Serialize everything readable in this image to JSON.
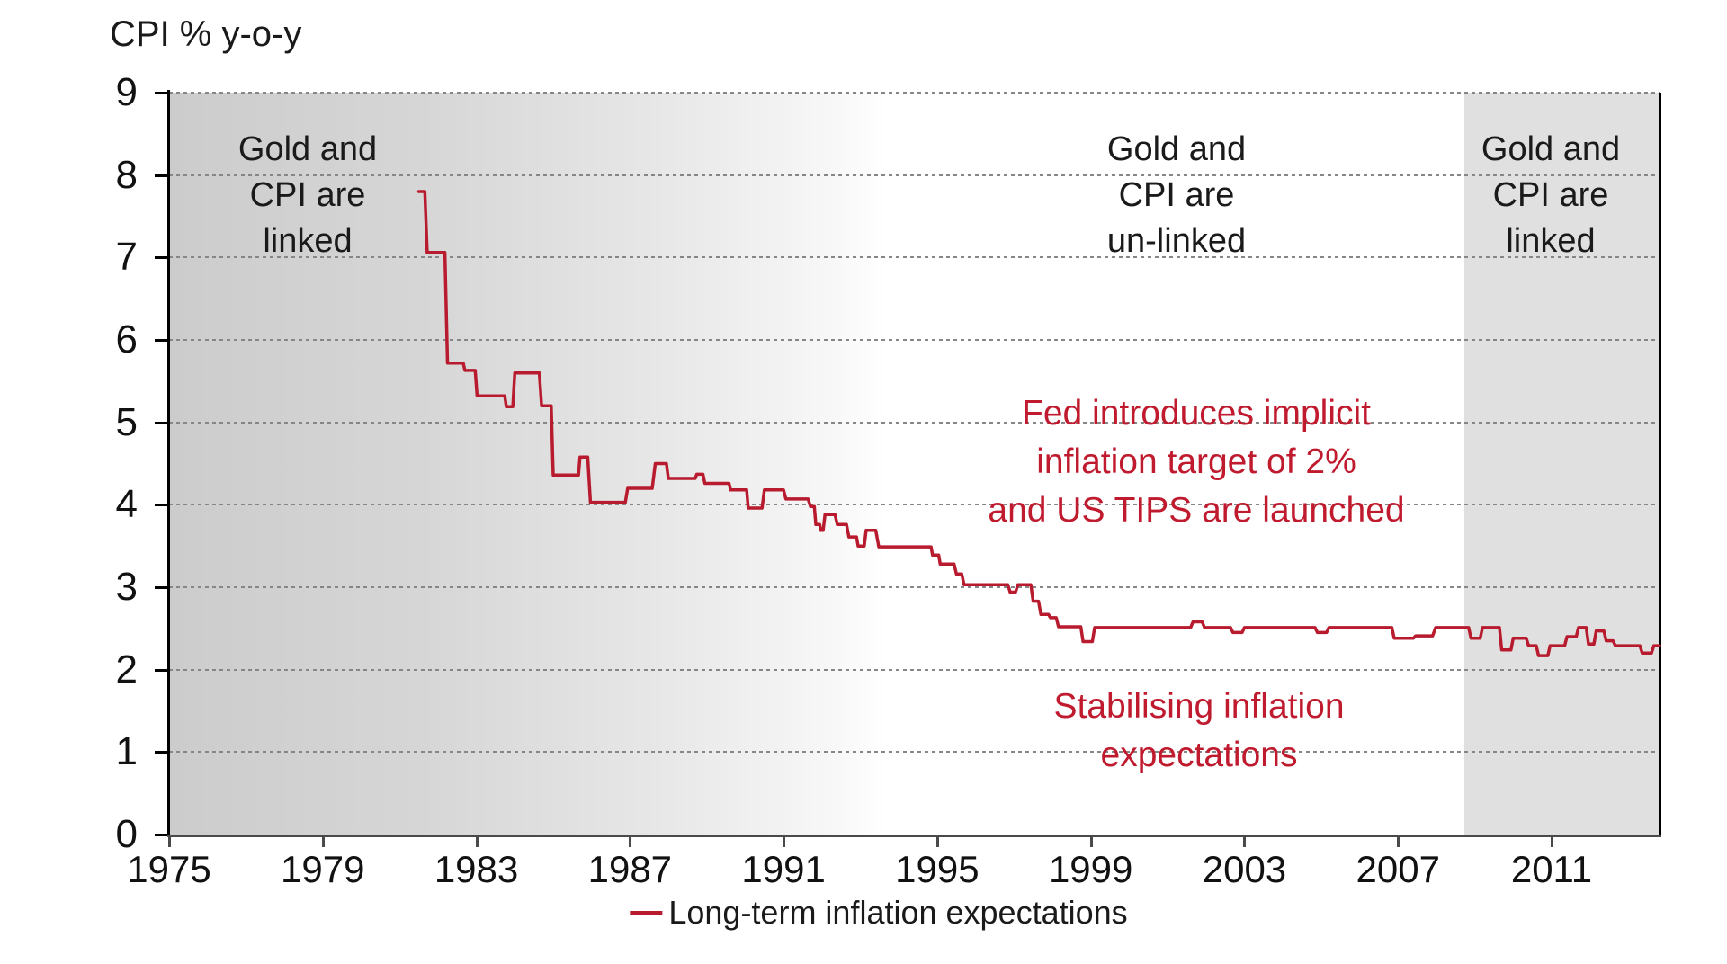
{
  "title": "CPI % y-o-y",
  "colors": {
    "line": "#b81a2e",
    "red_text": "#c01a2e",
    "black_text": "#1a1a1a",
    "gridline": "#868686",
    "y_axis": "#000000",
    "x_axis": "#4a4a4a",
    "region_gradient_start": "#cccccc",
    "region_gray_flat": "#e0e0e0"
  },
  "chart_data": {
    "type": "line",
    "title": "CPI % y-o-y",
    "xlim": [
      1975,
      2013.81
    ],
    "ylim": [
      0,
      9
    ],
    "x_ticks": [
      1975,
      1979,
      1983,
      1987,
      1991,
      1995,
      1999,
      2003,
      2007,
      2011
    ],
    "y_ticks": [
      0,
      1,
      2,
      3,
      4,
      5,
      6,
      7,
      8,
      9
    ],
    "grid": "horizontal-dashed",
    "legend_position": "bottom-center",
    "regions": [
      {
        "label": "Gold and CPI are linked",
        "x0": 1975,
        "x1": 1993.7,
        "fill": "fill-gradient"
      },
      {
        "label": "Gold and CPI are un-linked",
        "x0": 1993.7,
        "x1": 2008.73,
        "fill": "fill-white"
      },
      {
        "label": "Gold and CPI are linked",
        "x0": 2008.73,
        "x1": 2013.81,
        "fill": "fill-solid"
      }
    ],
    "region_labels": [
      [
        "Gold and",
        "CPI are",
        "linked"
      ],
      [
        "Gold and",
        "CPI are",
        "un-linked"
      ],
      [
        "Gold and",
        "CPI are",
        "linked"
      ]
    ],
    "annotations": [
      {
        "id": "fed",
        "lines": [
          "Fed introduces implicit",
          "inflation target of 2%",
          "and US TIPS are launched"
        ],
        "x": 2001.8,
        "y": 5.0
      },
      {
        "id": "stabilising",
        "lines": [
          "Stabilising inflation",
          "expectations"
        ],
        "x": 2001.9,
        "y": 1.4
      }
    ],
    "series": [
      {
        "name": "Long-term inflation expectations",
        "color": "#b81a2e",
        "steps": [
          [
            1981.5,
            1981.66,
            7.8
          ],
          [
            1981.72,
            1982.18,
            7.06
          ],
          [
            1982.25,
            1982.66,
            5.72
          ],
          [
            1982.7,
            1982.97,
            5.63
          ],
          [
            1983.02,
            1983.74,
            5.32
          ],
          [
            1983.78,
            1983.95,
            5.19
          ],
          [
            1984.0,
            1984.64,
            5.6
          ],
          [
            1984.7,
            1984.95,
            5.2
          ],
          [
            1985.0,
            1985.66,
            4.36
          ],
          [
            1985.7,
            1985.9,
            4.58
          ],
          [
            1985.97,
            1986.88,
            4.03
          ],
          [
            1986.94,
            1987.58,
            4.2
          ],
          [
            1987.66,
            1987.95,
            4.5
          ],
          [
            1988.0,
            1988.7,
            4.32
          ],
          [
            1988.74,
            1988.9,
            4.37
          ],
          [
            1988.95,
            1989.58,
            4.26
          ],
          [
            1989.62,
            1990.04,
            4.18
          ],
          [
            1990.08,
            1990.44,
            3.96
          ],
          [
            1990.5,
            1991.0,
            4.18
          ],
          [
            1991.06,
            1991.64,
            4.07
          ],
          [
            1991.7,
            1991.8,
            3.98
          ],
          [
            1991.84,
            1991.94,
            3.76
          ],
          [
            1991.97,
            1992.03,
            3.69
          ],
          [
            1992.08,
            1992.34,
            3.88
          ],
          [
            1992.4,
            1992.64,
            3.76
          ],
          [
            1992.7,
            1992.9,
            3.61
          ],
          [
            1992.94,
            1993.1,
            3.5
          ],
          [
            1993.15,
            1993.4,
            3.69
          ],
          [
            1993.48,
            1994.84,
            3.49
          ],
          [
            1994.88,
            1995.04,
            3.39
          ],
          [
            1995.08,
            1995.44,
            3.28
          ],
          [
            1995.5,
            1995.64,
            3.16
          ],
          [
            1995.7,
            1996.84,
            3.03
          ],
          [
            1996.9,
            1997.04,
            2.94
          ],
          [
            1997.1,
            1997.44,
            3.03
          ],
          [
            1997.5,
            1997.64,
            2.83
          ],
          [
            1997.7,
            1997.9,
            2.67
          ],
          [
            1997.95,
            1998.1,
            2.63
          ],
          [
            1998.16,
            1998.74,
            2.52
          ],
          [
            1998.8,
            1999.04,
            2.34
          ],
          [
            1999.1,
            2001.6,
            2.51
          ],
          [
            2001.66,
            2001.9,
            2.58
          ],
          [
            2001.96,
            2002.64,
            2.51
          ],
          [
            2002.7,
            2002.94,
            2.45
          ],
          [
            2003.0,
            2004.84,
            2.51
          ],
          [
            2004.9,
            2005.14,
            2.45
          ],
          [
            2005.2,
            2006.84,
            2.51
          ],
          [
            2006.9,
            2007.4,
            2.38
          ],
          [
            2007.46,
            2007.9,
            2.41
          ],
          [
            2007.98,
            2008.84,
            2.51
          ],
          [
            2008.9,
            2009.14,
            2.38
          ],
          [
            2009.2,
            2009.64,
            2.51
          ],
          [
            2009.7,
            2009.94,
            2.24
          ],
          [
            2010.0,
            2010.34,
            2.38
          ],
          [
            2010.4,
            2010.6,
            2.29
          ],
          [
            2010.66,
            2010.9,
            2.17
          ],
          [
            2010.96,
            2011.34,
            2.29
          ],
          [
            2011.4,
            2011.64,
            2.4
          ],
          [
            2011.7,
            2011.9,
            2.51
          ],
          [
            2011.96,
            2012.1,
            2.31
          ],
          [
            2012.16,
            2012.36,
            2.47
          ],
          [
            2012.42,
            2012.6,
            2.35
          ],
          [
            2012.66,
            2013.3,
            2.29
          ],
          [
            2013.36,
            2013.6,
            2.2
          ],
          [
            2013.66,
            2013.81,
            2.29
          ]
        ]
      }
    ]
  }
}
